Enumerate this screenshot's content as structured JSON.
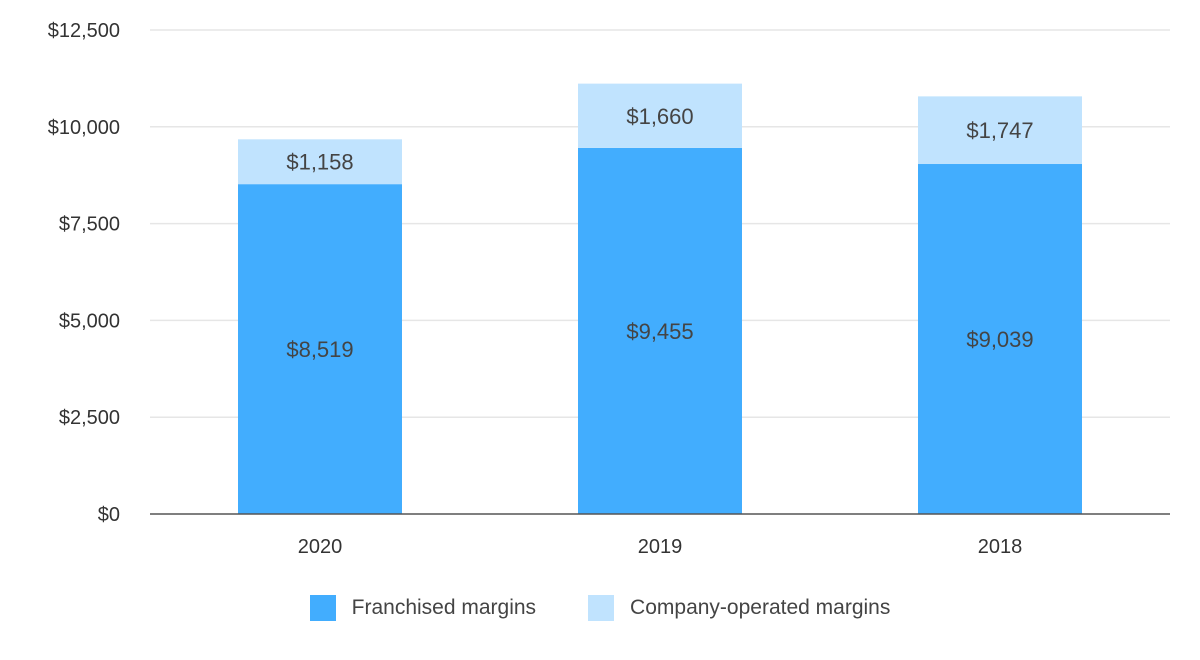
{
  "chart_data": {
    "type": "bar",
    "stacked": true,
    "title": "",
    "xlabel": "",
    "ylabel": "",
    "categories": [
      "2020",
      "2019",
      "2018"
    ],
    "series": [
      {
        "name": "Franchised margins",
        "color": "#42adfe",
        "values": [
          8519,
          9455,
          9039
        ],
        "labels": [
          "$8,519",
          "$9,455",
          "$9,039"
        ]
      },
      {
        "name": "Company-operated margins",
        "color": "#c0e3fe",
        "values": [
          1158,
          1660,
          1747
        ],
        "labels": [
          "$1,158",
          "$1,660",
          "$1,747"
        ]
      }
    ],
    "ylim": [
      0,
      12500
    ],
    "yticks": [
      0,
      2500,
      5000,
      7500,
      10000,
      12500
    ],
    "ytick_labels": [
      "$0",
      "$2,500",
      "$5,000",
      "$7,500",
      "$10,000",
      "$12,500"
    ],
    "grid": true,
    "legend_position": "bottom"
  }
}
